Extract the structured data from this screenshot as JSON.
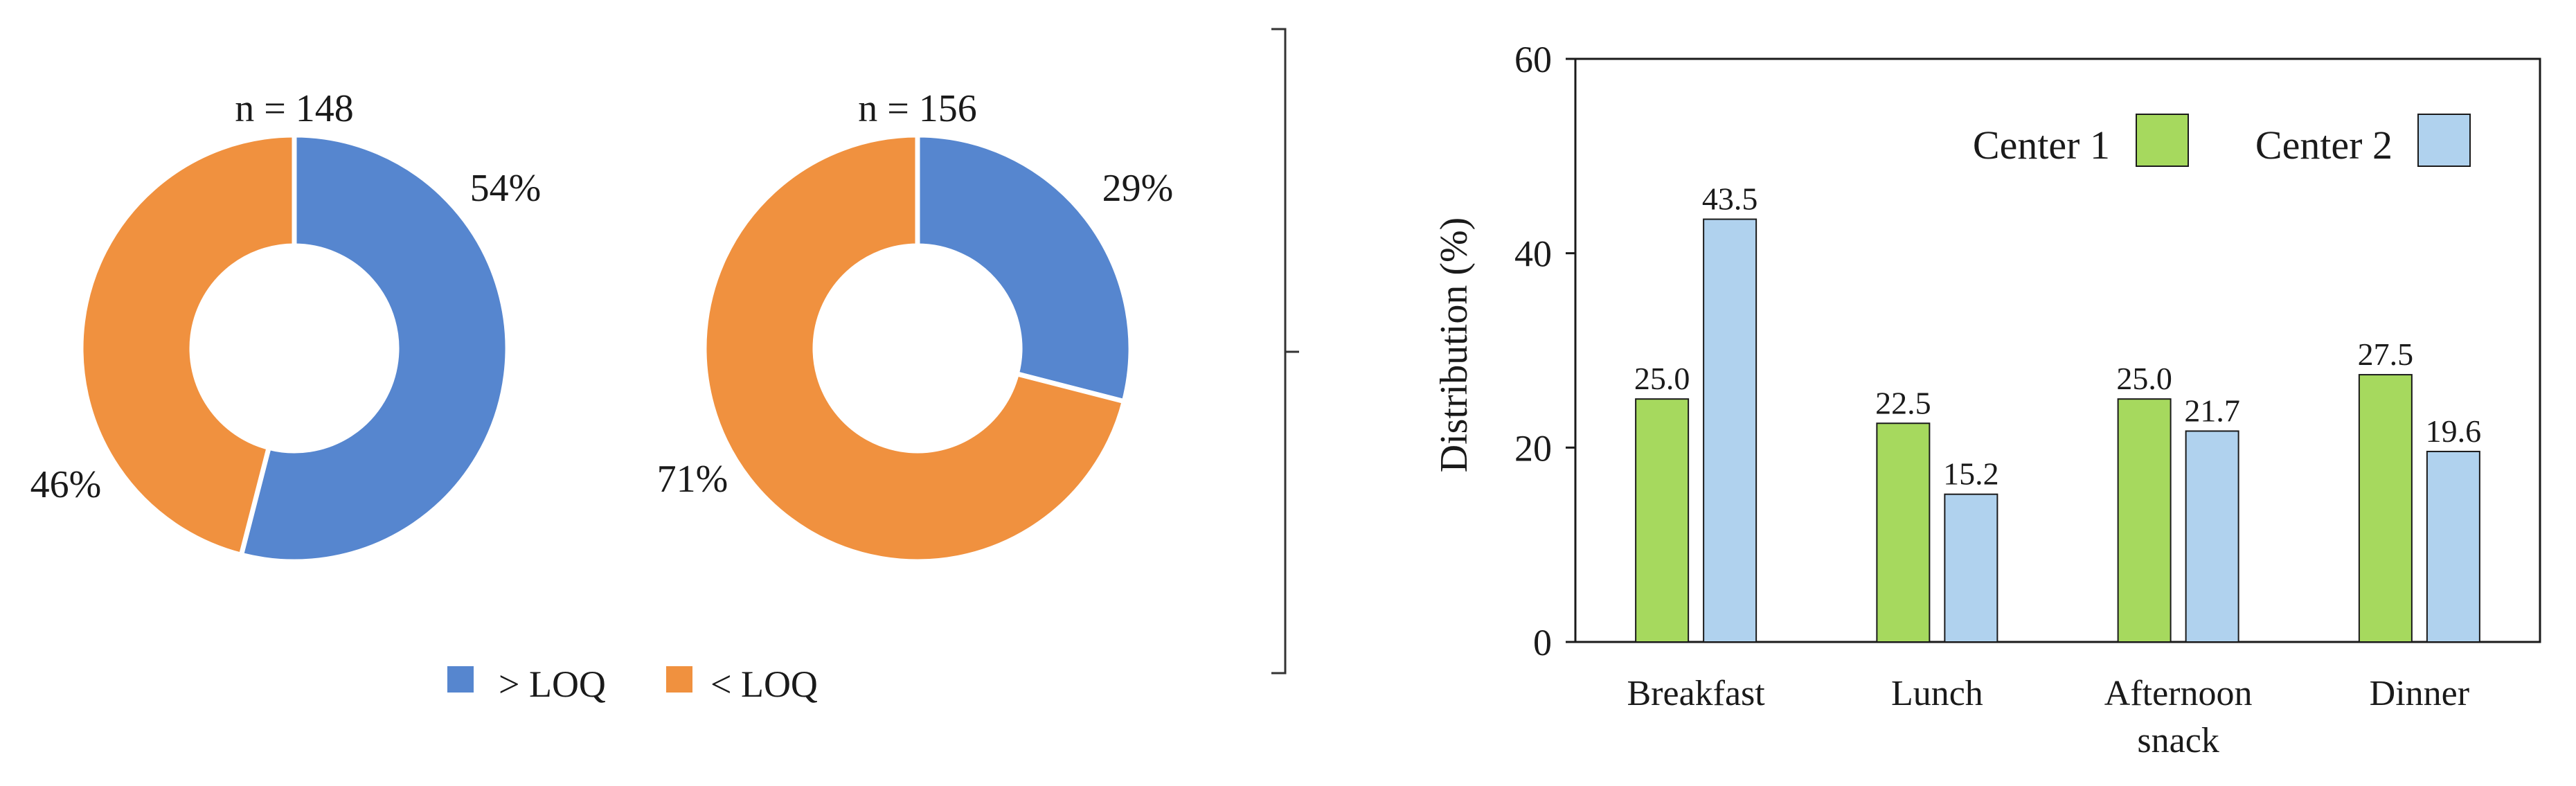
{
  "chart_data": [
    {
      "type": "pie",
      "variant": "donut",
      "title": "n = 148",
      "slices": [
        {
          "label": "> LOQ",
          "value": 54,
          "text": "54%",
          "color": "#5686cf"
        },
        {
          "label": "< LOQ",
          "value": 46,
          "text": "46%",
          "color": "#f0913f"
        }
      ]
    },
    {
      "type": "pie",
      "variant": "donut",
      "title": "n = 156",
      "slices": [
        {
          "label": "> LOQ",
          "value": 29,
          "text": "29%",
          "color": "#5686cf"
        },
        {
          "label": "< LOQ",
          "value": 71,
          "text": "71%",
          "color": "#f0913f"
        }
      ]
    },
    {
      "type": "bar",
      "categories": [
        "Breakfast",
        "Lunch",
        "Afternoon snack",
        "Dinner"
      ],
      "category_lines": [
        [
          "Breakfast"
        ],
        [
          "Lunch"
        ],
        [
          "Afternoon",
          "snack"
        ],
        [
          "Dinner"
        ]
      ],
      "series": [
        {
          "name": "Center 1",
          "values": [
            25.0,
            22.5,
            25.0,
            27.5
          ],
          "labels": [
            "25.0",
            "22.5",
            "25.0",
            "27.5"
          ],
          "color": "#a6d95e"
        },
        {
          "name": "Center 2",
          "values": [
            43.5,
            15.2,
            21.7,
            19.6
          ],
          "labels": [
            "43.5",
            "15.2",
            "21.7",
            "19.6"
          ],
          "color": "#b0d2ee"
        }
      ],
      "ylabel": "Distribution (%)",
      "ylim": [
        0,
        60
      ],
      "yticks": [
        0,
        20,
        40,
        60
      ],
      "grid": false,
      "legend_position": "top-right"
    }
  ],
  "pie_legend": [
    {
      "label": "> LOQ",
      "color": "#5686cf"
    },
    {
      "label": "< LOQ",
      "color": "#f0913f"
    }
  ]
}
